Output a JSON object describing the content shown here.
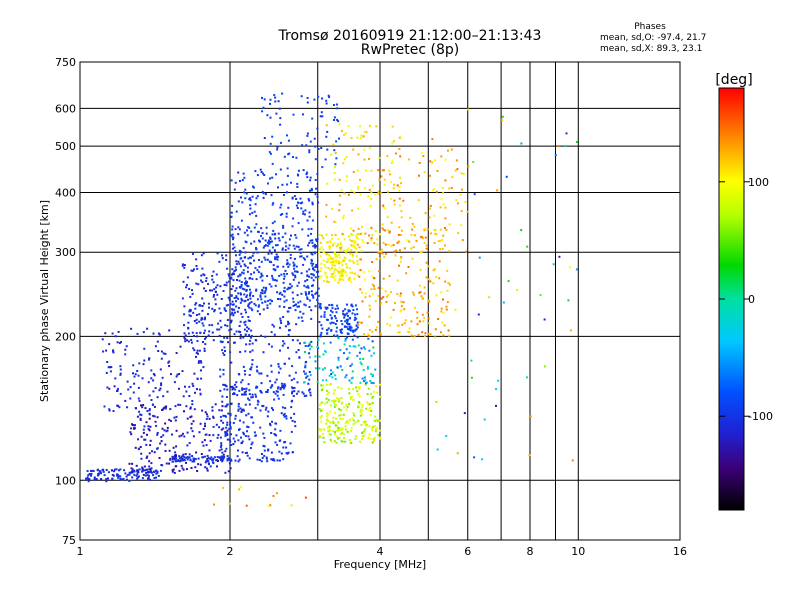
{
  "chart_data": {
    "type": "scatter",
    "title_line1": "Tromsø 20160919 21:12:00–21:13:43",
    "title_line2": "RwPretec (8p)",
    "xlabel": "Frequency [MHz]",
    "ylabel": "Stationary phase Virtual Height [km]",
    "x_scale": "log",
    "y_scale": "log",
    "xlim": [
      1,
      16
    ],
    "ylim": [
      75,
      750
    ],
    "x_ticks": [
      1,
      2,
      4,
      6,
      8,
      10,
      16
    ],
    "x_tick_labels": [
      "1",
      "2",
      "4",
      "6",
      "8",
      "10",
      "16"
    ],
    "x_minor_ticks": [
      3,
      5,
      7,
      9
    ],
    "y_ticks": [
      75,
      100,
      200,
      300,
      400,
      500,
      600,
      750
    ],
    "y_tick_labels": [
      "75",
      "100",
      "200",
      "300",
      "400",
      "500",
      "600",
      "750"
    ],
    "grid": true,
    "colorbar": {
      "label": "[deg]",
      "range": [
        -180,
        180
      ],
      "ticks": [
        100,
        0,
        -100
      ],
      "tick_labels": [
        "100",
        "0",
        "-100"
      ]
    },
    "phases": {
      "title": "Phases",
      "line_o": "mean, sd,O: -97.4, 21.7",
      "line_x": "mean, sd,X:  89.3, 23.1"
    },
    "clusters": [
      {
        "x": [
          1.02,
          1.45
        ],
        "y": [
          100,
          106
        ],
        "n": 120,
        "phase": [
          -120,
          -90
        ]
      },
      {
        "x": [
          1.25,
          2.0
        ],
        "y": [
          104,
          145
        ],
        "n": 240,
        "phase": [
          -140,
          -100
        ]
      },
      {
        "x": [
          1.5,
          2.0
        ],
        "y": [
          110,
          113
        ],
        "n": 80,
        "phase": [
          -110,
          -95
        ]
      },
      {
        "x": [
          1.1,
          1.8
        ],
        "y": [
          140,
          210
        ],
        "n": 160,
        "phase": [
          -120,
          -100
        ]
      },
      {
        "x": [
          1.6,
          2.2
        ],
        "y": [
          195,
          300
        ],
        "n": 220,
        "phase": [
          -115,
          -95
        ]
      },
      {
        "x": [
          1.9,
          2.7
        ],
        "y": [
          110,
          160
        ],
        "n": 220,
        "phase": [
          -110,
          -90
        ]
      },
      {
        "x": [
          2.0,
          3.0
        ],
        "y": [
          230,
          330
        ],
        "n": 360,
        "phase": [
          -105,
          -85
        ]
      },
      {
        "x": [
          1.9,
          2.9
        ],
        "y": [
          150,
          230
        ],
        "n": 200,
        "phase": [
          -110,
          -90
        ]
      },
      {
        "x": [
          2.0,
          3.0
        ],
        "y": [
          330,
          450
        ],
        "n": 140,
        "phase": [
          -105,
          -85
        ]
      },
      {
        "x": [
          2.3,
          3.3
        ],
        "y": [
          450,
          650
        ],
        "n": 80,
        "phase": [
          -100,
          -80
        ]
      },
      {
        "x": [
          3.0,
          4.0
        ],
        "y": [
          120,
          160
        ],
        "n": 230,
        "phase": [
          50,
          110
        ]
      },
      {
        "x": [
          3.0,
          3.6
        ],
        "y": [
          260,
          330
        ],
        "n": 180,
        "phase": [
          80,
          120
        ]
      },
      {
        "x": [
          3.0,
          3.6
        ],
        "y": [
          200,
          235
        ],
        "n": 120,
        "phase": [
          -100,
          -80
        ]
      },
      {
        "x": [
          3.1,
          4.4
        ],
        "y": [
          300,
          560
        ],
        "n": 120,
        "phase": [
          80,
          140
        ]
      },
      {
        "x": [
          3.6,
          5.5
        ],
        "y": [
          200,
          340
        ],
        "n": 220,
        "phase": [
          100,
          150
        ]
      },
      {
        "x": [
          2.8,
          3.9
        ],
        "y": [
          160,
          200
        ],
        "n": 100,
        "phase": [
          -90,
          20
        ]
      },
      {
        "x": [
          4.0,
          6.0
        ],
        "y": [
          300,
          500
        ],
        "n": 90,
        "phase": [
          100,
          150
        ]
      },
      {
        "x": [
          5.0,
          10.0
        ],
        "y": [
          110,
          600
        ],
        "n": 50,
        "phase": [
          -130,
          150
        ]
      },
      {
        "x": [
          1.8,
          2.9
        ],
        "y": [
          88,
          98
        ],
        "n": 12,
        "phase": [
          100,
          160
        ]
      }
    ]
  }
}
